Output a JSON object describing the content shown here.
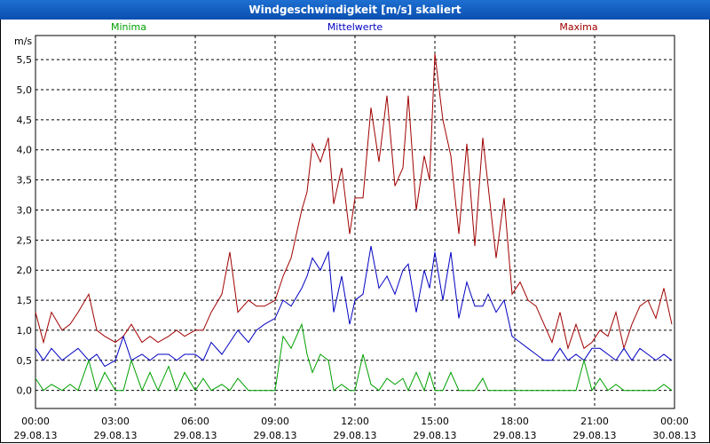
{
  "window": {
    "title": "Windgeschwindigkeit [m/s] skaliert"
  },
  "colors": {
    "minima": "#00a000",
    "mittel": "#0000c0",
    "maxima": "#a00000",
    "grid": "#000000"
  },
  "chart_data": {
    "type": "line",
    "title": "Windgeschwindigkeit [m/s] skaliert",
    "ylabel": "m/s",
    "xlabel": "",
    "ylim": [
      -0.3,
      5.9
    ],
    "xlim": [
      0,
      24
    ],
    "yticks": [
      "0,0",
      "0,5",
      "1,0",
      "1,5",
      "2,0",
      "2,5",
      "3,0",
      "3,5",
      "4,0",
      "4,5",
      "5,0",
      "5,5"
    ],
    "xticks": [
      {
        "time": "00:00",
        "date": "29.08.13"
      },
      {
        "time": "03:00",
        "date": "29.08.13"
      },
      {
        "time": "06:00",
        "date": "29.08.13"
      },
      {
        "time": "09:00",
        "date": "29.08.13"
      },
      {
        "time": "12:00",
        "date": "29.08.13"
      },
      {
        "time": "15:00",
        "date": "29.08.13"
      },
      {
        "time": "18:00",
        "date": "29.08.13"
      },
      {
        "time": "21:00",
        "date": "29.08.13"
      },
      {
        "time": "00:00",
        "date": "30.08.13"
      }
    ],
    "legend": [
      "Minima",
      "Mittelwerte",
      "Maxima"
    ],
    "series": [
      {
        "name": "Maxima",
        "x": [
          0,
          0.3,
          0.6,
          1,
          1.3,
          1.6,
          2,
          2.3,
          2.6,
          3,
          3.3,
          3.6,
          4,
          4.3,
          4.6,
          5,
          5.3,
          5.6,
          6,
          6.3,
          6.6,
          7,
          7.3,
          7.6,
          8,
          8.3,
          8.6,
          9,
          9.3,
          9.6,
          10,
          10.2,
          10.4,
          10.7,
          11,
          11.2,
          11.5,
          11.8,
          12,
          12.3,
          12.6,
          12.9,
          13.2,
          13.5,
          13.8,
          14,
          14.3,
          14.6,
          14.8,
          15,
          15.3,
          15.6,
          15.9,
          16.2,
          16.5,
          16.8,
          17,
          17.3,
          17.6,
          17.9,
          18.2,
          18.5,
          18.8,
          19.1,
          19.4,
          19.7,
          20,
          20.3,
          20.6,
          20.9,
          21.2,
          21.5,
          21.8,
          22.1,
          22.4,
          22.7,
          23,
          23.3,
          23.6,
          23.9
        ],
        "values": [
          1.3,
          0.8,
          1.3,
          1.0,
          1.1,
          1.3,
          1.6,
          1.0,
          0.9,
          0.8,
          0.9,
          1.1,
          0.8,
          0.9,
          0.8,
          0.9,
          1.0,
          0.9,
          1.0,
          1.0,
          1.3,
          1.6,
          2.3,
          1.3,
          1.5,
          1.4,
          1.4,
          1.5,
          1.9,
          2.2,
          3.0,
          3.3,
          4.1,
          3.8,
          4.2,
          3.1,
          3.7,
          2.6,
          3.2,
          3.2,
          4.7,
          3.8,
          4.9,
          3.4,
          3.7,
          4.9,
          3.0,
          3.9,
          3.5,
          5.6,
          4.5,
          3.9,
          2.6,
          4.1,
          2.4,
          4.2,
          3.4,
          2.2,
          3.2,
          1.6,
          1.8,
          1.5,
          1.4,
          1.1,
          0.8,
          1.3,
          0.7,
          1.1,
          0.7,
          0.8,
          1.0,
          0.9,
          1.3,
          0.7,
          1.1,
          1.4,
          1.5,
          1.2,
          1.7,
          1.1
        ]
      },
      {
        "name": "Mittelwerte",
        "x": [
          0,
          0.3,
          0.6,
          1,
          1.3,
          1.6,
          2,
          2.3,
          2.6,
          3,
          3.3,
          3.6,
          4,
          4.3,
          4.6,
          5,
          5.3,
          5.6,
          6,
          6.3,
          6.6,
          7,
          7.3,
          7.6,
          8,
          8.3,
          8.6,
          9,
          9.3,
          9.6,
          10,
          10.2,
          10.4,
          10.7,
          11,
          11.2,
          11.5,
          11.8,
          12,
          12.3,
          12.6,
          12.9,
          13.2,
          13.5,
          13.8,
          14,
          14.3,
          14.6,
          14.8,
          15,
          15.3,
          15.6,
          15.9,
          16.2,
          16.5,
          16.8,
          17,
          17.3,
          17.6,
          17.9,
          18.2,
          18.5,
          18.8,
          19.1,
          19.4,
          19.7,
          20,
          20.3,
          20.6,
          20.9,
          21.2,
          21.5,
          21.8,
          22.1,
          22.4,
          22.7,
          23,
          23.3,
          23.6,
          23.9
        ],
        "values": [
          0.7,
          0.5,
          0.7,
          0.5,
          0.6,
          0.7,
          0.5,
          0.6,
          0.4,
          0.5,
          0.9,
          0.5,
          0.6,
          0.5,
          0.6,
          0.6,
          0.5,
          0.6,
          0.6,
          0.5,
          0.8,
          0.6,
          0.8,
          1.0,
          0.8,
          1.0,
          1.1,
          1.2,
          1.5,
          1.4,
          1.7,
          1.9,
          2.2,
          2.0,
          2.3,
          1.3,
          1.9,
          1.1,
          1.5,
          1.6,
          2.4,
          1.7,
          1.9,
          1.6,
          2.0,
          2.1,
          1.3,
          2.0,
          1.7,
          2.3,
          1.5,
          2.3,
          1.2,
          1.8,
          1.4,
          1.4,
          1.6,
          1.3,
          1.5,
          0.9,
          0.8,
          0.7,
          0.6,
          0.5,
          0.5,
          0.7,
          0.5,
          0.6,
          0.5,
          0.7,
          0.7,
          0.6,
          0.5,
          0.7,
          0.5,
          0.7,
          0.6,
          0.5,
          0.6,
          0.5
        ]
      },
      {
        "name": "Minima",
        "x": [
          0,
          0.3,
          0.6,
          1,
          1.3,
          1.6,
          2,
          2.3,
          2.6,
          3,
          3.3,
          3.6,
          4,
          4.3,
          4.6,
          5,
          5.3,
          5.6,
          6,
          6.3,
          6.6,
          7,
          7.3,
          7.6,
          8,
          8.3,
          8.6,
          9,
          9.3,
          9.6,
          10,
          10.2,
          10.4,
          10.7,
          11,
          11.2,
          11.5,
          11.8,
          12,
          12.3,
          12.6,
          12.9,
          13.2,
          13.5,
          13.8,
          14,
          14.3,
          14.6,
          14.8,
          15,
          15.3,
          15.6,
          15.9,
          16.2,
          16.5,
          16.8,
          17,
          17.3,
          17.6,
          17.9,
          18.2,
          18.5,
          18.8,
          19.1,
          19.4,
          19.7,
          20,
          20.3,
          20.6,
          20.9,
          21.2,
          21.5,
          21.8,
          22.1,
          22.4,
          22.7,
          23,
          23.3,
          23.6,
          23.9
        ],
        "values": [
          0.2,
          0.0,
          0.1,
          0.0,
          0.1,
          0.0,
          0.5,
          0.0,
          0.3,
          0.0,
          0.0,
          0.5,
          0.0,
          0.3,
          0.0,
          0.4,
          0.0,
          0.3,
          0.0,
          0.2,
          0.0,
          0.1,
          0.0,
          0.2,
          0.0,
          0.0,
          0.0,
          0.0,
          0.9,
          0.7,
          1.1,
          0.6,
          0.3,
          0.6,
          0.5,
          0.0,
          0.1,
          0.0,
          0.0,
          0.6,
          0.1,
          0.0,
          0.2,
          0.1,
          0.2,
          0.0,
          0.3,
          0.0,
          0.3,
          0.0,
          0.0,
          0.3,
          0.0,
          0.0,
          0.0,
          0.2,
          0.0,
          0.0,
          0.0,
          0.0,
          0.0,
          0.0,
          0.0,
          0.0,
          0.0,
          0.0,
          0.0,
          0.0,
          0.5,
          0.0,
          0.2,
          0.0,
          0.1,
          0.0,
          0.0,
          0.0,
          0.0,
          0.0,
          0.1,
          0.0
        ]
      }
    ]
  }
}
